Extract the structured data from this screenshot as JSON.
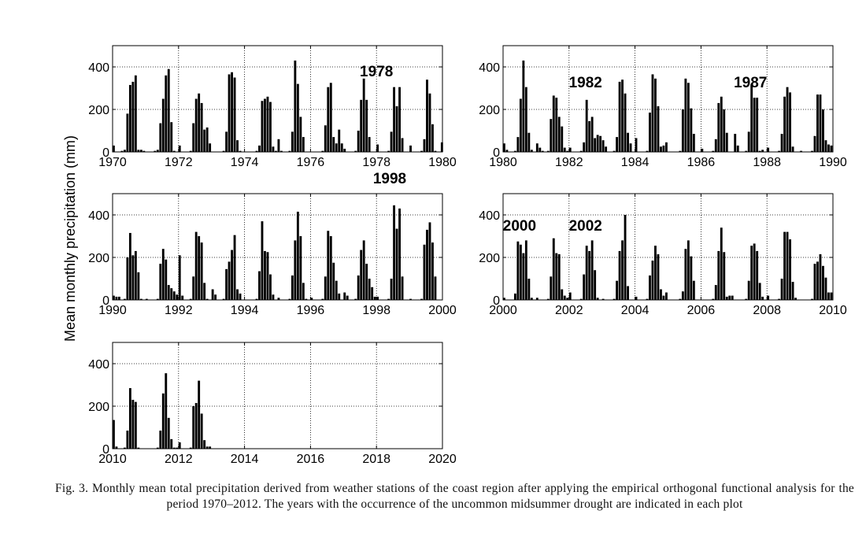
{
  "figure": {
    "ylabel": "Mean monthly precipitation (mm)",
    "caption": "Fig. 3. Monthly mean total precipitation derived from weather stations of the coast region after applying the empirical orthogonal functional analysis for the period 1970–2012. The years with the occurrence of the uncommon midsummer drought are indicated in each plot"
  },
  "chart_data": [
    {
      "type": "bar",
      "xlim": [
        1970,
        1980
      ],
      "ylim": [
        0,
        500
      ],
      "xticks": [
        "1970",
        "1972",
        "1974",
        "1976",
        "1978",
        "1980"
      ],
      "yticks": [
        "0",
        "200",
        "400"
      ],
      "annotations": [
        {
          "text": "1978",
          "year": 1978
        }
      ],
      "years": [
        {
          "year": 1970,
          "values": [
            30,
            0,
            0,
            5,
            10,
            180,
            315,
            330,
            360,
            10,
            10,
            5
          ]
        },
        {
          "year": 1971,
          "values": [
            0,
            0,
            0,
            5,
            10,
            135,
            250,
            360,
            390,
            140,
            5,
            0
          ]
        },
        {
          "year": 1972,
          "values": [
            30,
            0,
            0,
            0,
            5,
            135,
            250,
            275,
            230,
            105,
            115,
            40
          ]
        },
        {
          "year": 1973,
          "values": [
            0,
            0,
            0,
            0,
            5,
            95,
            365,
            375,
            350,
            55,
            5,
            0
          ]
        },
        {
          "year": 1974,
          "values": [
            0,
            0,
            0,
            0,
            5,
            30,
            240,
            250,
            260,
            235,
            25,
            5
          ]
        },
        {
          "year": 1975,
          "values": [
            60,
            5,
            0,
            0,
            5,
            95,
            430,
            320,
            165,
            70,
            0,
            0
          ]
        },
        {
          "year": 1976,
          "values": [
            0,
            0,
            0,
            0,
            5,
            125,
            305,
            325,
            70,
            40,
            105,
            40
          ]
        },
        {
          "year": 1977,
          "values": [
            15,
            0,
            0,
            0,
            5,
            100,
            245,
            345,
            245,
            70,
            0,
            0
          ]
        },
        {
          "year": 1978,
          "values": [
            35,
            0,
            0,
            0,
            5,
            95,
            305,
            215,
            305,
            65,
            0,
            0
          ]
        },
        {
          "year": 1979,
          "values": [
            30,
            0,
            0,
            0,
            5,
            60,
            340,
            275,
            130,
            5,
            0,
            0
          ]
        },
        {
          "year": 1979.95,
          "values": [
            45
          ]
        }
      ]
    },
    {
      "type": "bar",
      "xlim": [
        1980,
        1990
      ],
      "ylim": [
        0,
        500
      ],
      "xticks": [
        "1980",
        "1982",
        "1984",
        "1986",
        "1988",
        "1990"
      ],
      "yticks": [
        "0",
        "200",
        "400"
      ],
      "annotations": [
        {
          "text": "1982",
          "year": 1982.5
        },
        {
          "text": "1987",
          "year": 1987.5
        }
      ],
      "years": [
        {
          "year": 1980,
          "values": [
            40,
            10,
            0,
            0,
            5,
            70,
            250,
            430,
            305,
            90,
            10,
            0
          ]
        },
        {
          "year": 1981,
          "values": [
            40,
            20,
            5,
            0,
            5,
            155,
            265,
            255,
            165,
            120,
            20,
            5
          ]
        },
        {
          "year": 1982,
          "values": [
            20,
            0,
            0,
            0,
            5,
            45,
            245,
            145,
            165,
            65,
            80,
            75
          ]
        },
        {
          "year": 1983,
          "values": [
            55,
            25,
            0,
            0,
            5,
            70,
            330,
            340,
            275,
            90,
            40,
            0
          ]
        },
        {
          "year": 1984,
          "values": [
            65,
            0,
            0,
            0,
            5,
            185,
            365,
            345,
            215,
            25,
            30,
            45
          ]
        },
        {
          "year": 1985,
          "values": [
            0,
            0,
            0,
            0,
            5,
            200,
            345,
            325,
            205,
            85,
            0,
            0
          ]
        },
        {
          "year": 1986,
          "values": [
            15,
            0,
            0,
            0,
            5,
            60,
            230,
            260,
            200,
            90,
            0,
            0
          ]
        },
        {
          "year": 1987,
          "values": [
            85,
            30,
            0,
            0,
            5,
            95,
            320,
            255,
            255,
            5,
            10,
            0
          ]
        },
        {
          "year": 1988,
          "values": [
            20,
            0,
            0,
            0,
            5,
            85,
            260,
            305,
            280,
            25,
            0,
            0
          ]
        },
        {
          "year": 1989,
          "values": [
            5,
            0,
            0,
            0,
            5,
            75,
            270,
            270,
            200,
            55,
            35,
            30
          ]
        }
      ]
    },
    {
      "type": "bar",
      "xlim": [
        1990,
        2000
      ],
      "ylim": [
        0,
        500
      ],
      "xticks": [
        "1990",
        "1992",
        "1994",
        "1996",
        "1998",
        "2000"
      ],
      "yticks": [
        "0",
        "200",
        "400"
      ],
      "annotations": [
        {
          "text": "1998",
          "year": 1998.4
        }
      ],
      "years": [
        {
          "year": 1990,
          "values": [
            20,
            15,
            15,
            0,
            5,
            200,
            315,
            210,
            230,
            130,
            5,
            0
          ]
        },
        {
          "year": 1991,
          "values": [
            5,
            0,
            0,
            0,
            5,
            170,
            240,
            190,
            70,
            55,
            40,
            25
          ]
        },
        {
          "year": 1992,
          "values": [
            210,
            20,
            0,
            0,
            5,
            110,
            320,
            300,
            270,
            80,
            5,
            0
          ]
        },
        {
          "year": 1993,
          "values": [
            50,
            25,
            0,
            0,
            5,
            145,
            180,
            235,
            305,
            50,
            30,
            0
          ]
        },
        {
          "year": 1994,
          "values": [
            0,
            0,
            0,
            0,
            5,
            135,
            370,
            230,
            225,
            120,
            25,
            0
          ]
        },
        {
          "year": 1995,
          "values": [
            10,
            0,
            0,
            0,
            5,
            115,
            280,
            415,
            300,
            80,
            5,
            0
          ]
        },
        {
          "year": 1996,
          "values": [
            10,
            0,
            0,
            0,
            5,
            110,
            325,
            300,
            175,
            90,
            30,
            0
          ]
        },
        {
          "year": 1997,
          "values": [
            35,
            20,
            0,
            0,
            5,
            115,
            235,
            280,
            170,
            100,
            60,
            15
          ]
        },
        {
          "year": 1998,
          "values": [
            15,
            0,
            0,
            0,
            5,
            100,
            445,
            335,
            430,
            110,
            0,
            0
          ]
        },
        {
          "year": 1999,
          "values": [
            5,
            0,
            0,
            0,
            5,
            260,
            330,
            365,
            270,
            110,
            0,
            0
          ]
        }
      ]
    },
    {
      "type": "bar",
      "xlim": [
        2000,
        2010
      ],
      "ylim": [
        0,
        500
      ],
      "xticks": [
        "2000",
        "2002",
        "2004",
        "2006",
        "2008",
        "2010"
      ],
      "yticks": [
        "0",
        "200",
        "400"
      ],
      "annotations": [
        {
          "text": "2000",
          "year": 2000.5
        },
        {
          "text": "2002",
          "year": 2002.5
        }
      ],
      "years": [
        {
          "year": 2000,
          "values": [
            10,
            0,
            0,
            0,
            30,
            275,
            260,
            220,
            280,
            100,
            10,
            0
          ]
        },
        {
          "year": 2001,
          "values": [
            10,
            0,
            0,
            0,
            5,
            110,
            290,
            220,
            215,
            50,
            20,
            10
          ]
        },
        {
          "year": 2002,
          "values": [
            35,
            0,
            0,
            0,
            5,
            120,
            255,
            230,
            280,
            140,
            10,
            0
          ]
        },
        {
          "year": 2003,
          "values": [
            5,
            0,
            0,
            0,
            5,
            90,
            230,
            280,
            400,
            65,
            0,
            0
          ]
        },
        {
          "year": 2004,
          "values": [
            15,
            0,
            0,
            0,
            5,
            115,
            185,
            255,
            215,
            50,
            20,
            35
          ]
        },
        {
          "year": 2005,
          "values": [
            0,
            0,
            0,
            0,
            5,
            40,
            240,
            280,
            205,
            90,
            0,
            0
          ]
        },
        {
          "year": 2006,
          "values": [
            0,
            0,
            0,
            0,
            5,
            70,
            230,
            340,
            225,
            15,
            20,
            20
          ]
        },
        {
          "year": 2007,
          "values": [
            0,
            0,
            0,
            0,
            5,
            90,
            255,
            265,
            230,
            80,
            15,
            0
          ]
        },
        {
          "year": 2008,
          "values": [
            20,
            0,
            0,
            0,
            5,
            100,
            320,
            320,
            285,
            85,
            10,
            0
          ]
        },
        {
          "year": 2009,
          "values": [
            0,
            0,
            0,
            0,
            5,
            170,
            180,
            215,
            160,
            105,
            35,
            35
          ]
        }
      ]
    },
    {
      "type": "bar",
      "xlim": [
        2010,
        2020
      ],
      "ylim": [
        0,
        500
      ],
      "xticks": [
        "2010",
        "2012",
        "2014",
        "2016",
        "2018",
        "2020"
      ],
      "yticks": [
        "0",
        "200",
        "400"
      ],
      "annotations": [],
      "years": [
        {
          "year": 2010,
          "values": [
            135,
            10,
            0,
            0,
            5,
            85,
            285,
            230,
            220,
            5,
            0,
            0
          ]
        },
        {
          "year": 2011,
          "values": [
            0,
            0,
            0,
            0,
            5,
            85,
            260,
            355,
            145,
            45,
            5,
            5
          ]
        },
        {
          "year": 2012,
          "values": [
            30,
            0,
            0,
            0,
            5,
            200,
            215,
            320,
            165,
            40,
            10,
            10
          ]
        }
      ]
    }
  ]
}
